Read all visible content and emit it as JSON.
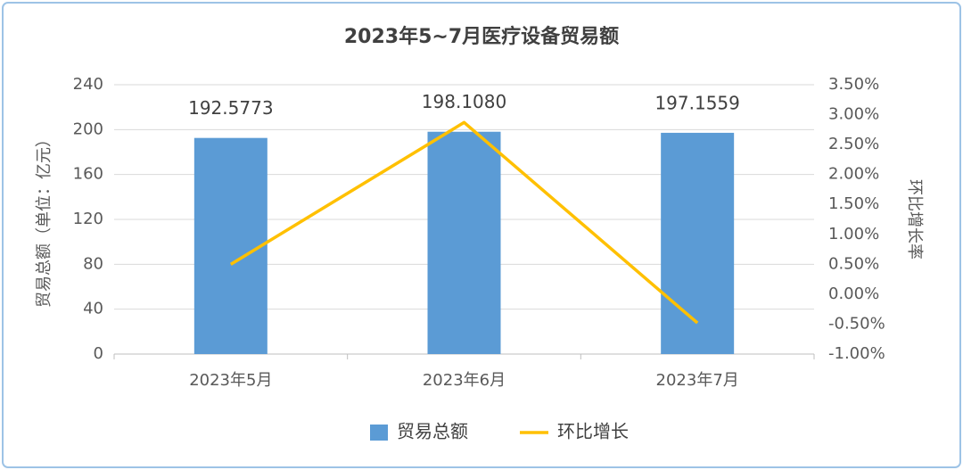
{
  "chart_data": {
    "type": "bar",
    "title": "2023年5~7月医疗设备贸易额",
    "y_label": "贸易总额（单位：亿元）",
    "y2_label": "环比增长率",
    "categories": [
      "2023年5月",
      "2023年6月",
      "2023年7月"
    ],
    "series": [
      {
        "name": "贸易总额",
        "type": "bar",
        "color": "#5b9bd5",
        "values": [
          192.5773,
          198.108,
          197.1559
        ],
        "value_labels": [
          "192.5773",
          "198.1080",
          "197.1559"
        ]
      },
      {
        "name": "环比增长",
        "type": "line",
        "axis": "y2",
        "color": "#ffc000",
        "values": [
          0.5,
          2.87,
          -0.48
        ]
      }
    ],
    "ylim": [
      0,
      240
    ],
    "yticks": [
      0,
      40,
      80,
      120,
      160,
      200,
      240
    ],
    "y2lim": [
      -1,
      3.5
    ],
    "y2ticks": [
      {
        "value": -1,
        "label": "-1.00%"
      },
      {
        "value": -0.5,
        "label": "-0.50%"
      },
      {
        "value": 0,
        "label": "0.00%"
      },
      {
        "value": 0.5,
        "label": "0.50%"
      },
      {
        "value": 1,
        "label": "1.00%"
      },
      {
        "value": 1.5,
        "label": "1.50%"
      },
      {
        "value": 2,
        "label": "2.00%"
      },
      {
        "value": 2.5,
        "label": "2.50%"
      },
      {
        "value": 3,
        "label": "3.00%"
      },
      {
        "value": 3.5,
        "label": "3.50%"
      }
    ],
    "grid": true,
    "legend": "bottom"
  }
}
